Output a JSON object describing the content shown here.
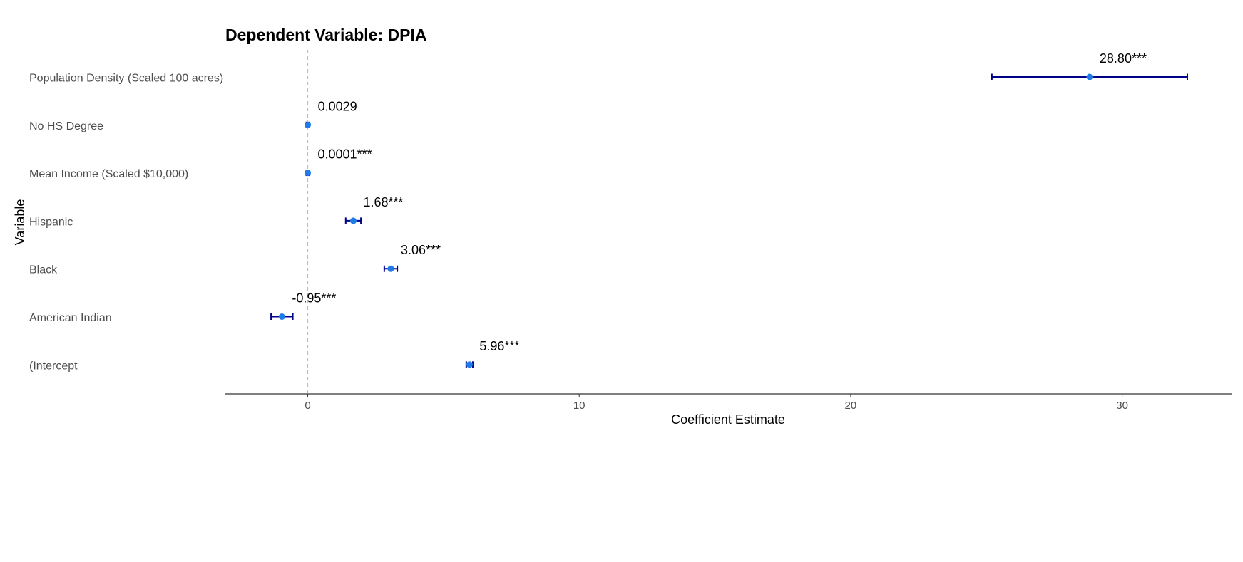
{
  "chart_data": {
    "type": "coefficient-plot",
    "title": "Dependent Variable: DPIA",
    "xlabel": "Coefficient Estimate",
    "ylabel": "Variable",
    "xlim": [
      -3,
      34
    ],
    "xticks": [
      0,
      10,
      20,
      30
    ],
    "zero_line": true,
    "grid": false,
    "colors": {
      "point": "#1f7be5",
      "errorbar": "#00008b",
      "zero_line": "#bdbdbd",
      "axis": "#333333"
    },
    "variables": [
      {
        "name": "Population Density (Scaled 100 acres)",
        "estimate": 28.8,
        "lower": 25.2,
        "upper": 32.4,
        "label": "28.80***"
      },
      {
        "name": "No HS Degree",
        "estimate": 0.0029,
        "lower": -0.05,
        "upper": 0.06,
        "label": "0.0029"
      },
      {
        "name": "Mean Income (Scaled $10,000)",
        "estimate": 0.0001,
        "lower": -0.05,
        "upper": 0.05,
        "label": "0.0001***"
      },
      {
        "name": "Hispanic",
        "estimate": 1.68,
        "lower": 1.4,
        "upper": 1.96,
        "label": "1.68***"
      },
      {
        "name": "Black",
        "estimate": 3.06,
        "lower": 2.82,
        "upper": 3.3,
        "label": "3.06***"
      },
      {
        "name": "American Indian",
        "estimate": -0.95,
        "lower": -1.35,
        "upper": -0.55,
        "label": "-0.95***"
      },
      {
        "name": "(Intercept",
        "estimate": 5.96,
        "lower": 5.84,
        "upper": 6.08,
        "label": "5.96***"
      }
    ]
  }
}
